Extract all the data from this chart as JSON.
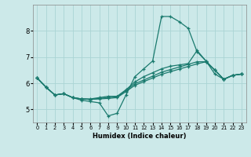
{
  "title": "",
  "xlabel": "Humidex (Indice chaleur)",
  "ylabel": "",
  "bg_color": "#cce9e9",
  "line_color": "#1a7a6e",
  "grid_color": "#aad4d4",
  "xlim": [
    -0.5,
    23.5
  ],
  "ylim": [
    4.5,
    9.0
  ],
  "yticks": [
    5,
    6,
    7,
    8
  ],
  "xticks": [
    0,
    1,
    2,
    3,
    4,
    5,
    6,
    7,
    8,
    9,
    10,
    11,
    12,
    13,
    14,
    15,
    16,
    17,
    18,
    19,
    20,
    21,
    22,
    23
  ],
  "lines": [
    {
      "x": [
        0,
        1,
        2,
        3,
        4,
        5,
        6,
        7,
        8,
        9,
        10,
        11,
        12,
        13,
        14,
        15,
        16,
        17,
        18,
        19,
        20,
        21,
        22,
        23
      ],
      "y": [
        6.2,
        5.85,
        5.55,
        5.6,
        5.45,
        5.35,
        5.3,
        5.25,
        4.75,
        4.85,
        5.55,
        6.25,
        6.55,
        6.85,
        8.55,
        8.55,
        8.35,
        8.1,
        7.2,
        6.85,
        6.35,
        6.15,
        6.3,
        6.35
      ]
    },
    {
      "x": [
        0,
        1,
        2,
        3,
        4,
        5,
        6,
        7,
        8,
        9,
        10,
        11,
        12,
        13,
        14,
        15,
        16,
        17,
        18,
        19,
        20,
        21,
        22,
        23
      ],
      "y": [
        6.2,
        5.85,
        5.55,
        5.6,
        5.45,
        5.4,
        5.4,
        5.45,
        5.5,
        5.5,
        5.75,
        6.05,
        6.25,
        6.4,
        6.55,
        6.65,
        6.7,
        6.75,
        7.25,
        6.85,
        6.5,
        6.15,
        6.3,
        6.35
      ]
    },
    {
      "x": [
        0,
        1,
        2,
        3,
        4,
        5,
        6,
        7,
        8,
        9,
        10,
        11,
        12,
        13,
        14,
        15,
        16,
        17,
        18,
        19,
        20,
        21,
        22,
        23
      ],
      "y": [
        6.2,
        5.85,
        5.55,
        5.6,
        5.45,
        5.4,
        5.38,
        5.42,
        5.45,
        5.48,
        5.72,
        5.98,
        6.12,
        6.27,
        6.42,
        6.52,
        6.62,
        6.72,
        6.82,
        6.82,
        6.5,
        6.15,
        6.3,
        6.35
      ]
    },
    {
      "x": [
        0,
        1,
        2,
        3,
        4,
        5,
        6,
        7,
        8,
        9,
        10,
        11,
        12,
        13,
        14,
        15,
        16,
        17,
        18,
        19,
        20,
        21,
        22,
        23
      ],
      "y": [
        6.2,
        5.85,
        5.55,
        5.6,
        5.45,
        5.4,
        5.38,
        5.4,
        5.42,
        5.45,
        5.68,
        5.92,
        6.06,
        6.2,
        6.34,
        6.44,
        6.54,
        6.64,
        6.74,
        6.82,
        6.5,
        6.15,
        6.3,
        6.35
      ]
    }
  ]
}
